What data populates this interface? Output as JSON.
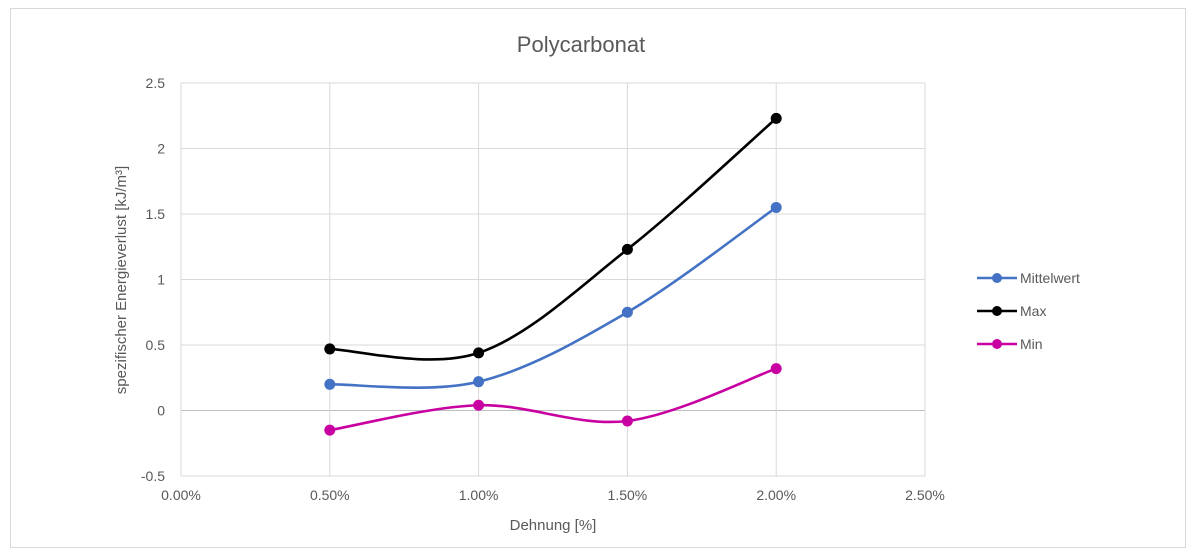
{
  "chart_data": {
    "type": "line",
    "title": "Polycarbonat",
    "xlabel": "Dehnung [%]",
    "ylabel": "spezifischer Energieverlust [kJ/m³]",
    "xlim": [
      0,
      0.025
    ],
    "ylim": [
      -0.5,
      2.5
    ],
    "x_ticks": [
      "0.00%",
      "0.50%",
      "1.00%",
      "1.50%",
      "2.00%",
      "2.50%"
    ],
    "y_ticks": [
      "2.5",
      "2",
      "1.5",
      "1",
      "0.5",
      "0",
      "-0.5"
    ],
    "x": [
      0.005,
      0.01,
      0.015,
      0.02
    ],
    "grid": true,
    "smooth": true,
    "legend_position": "right",
    "series": [
      {
        "name": "Mittelwert",
        "color": "#4472C4",
        "values": [
          0.2,
          0.22,
          0.75,
          1.55
        ]
      },
      {
        "name": "Max",
        "color": "#000000",
        "values": [
          0.47,
          0.44,
          1.23,
          2.23
        ]
      },
      {
        "name": "Min",
        "color": "#C800A1",
        "values": [
          -0.15,
          0.04,
          -0.08,
          0.32
        ]
      }
    ]
  }
}
